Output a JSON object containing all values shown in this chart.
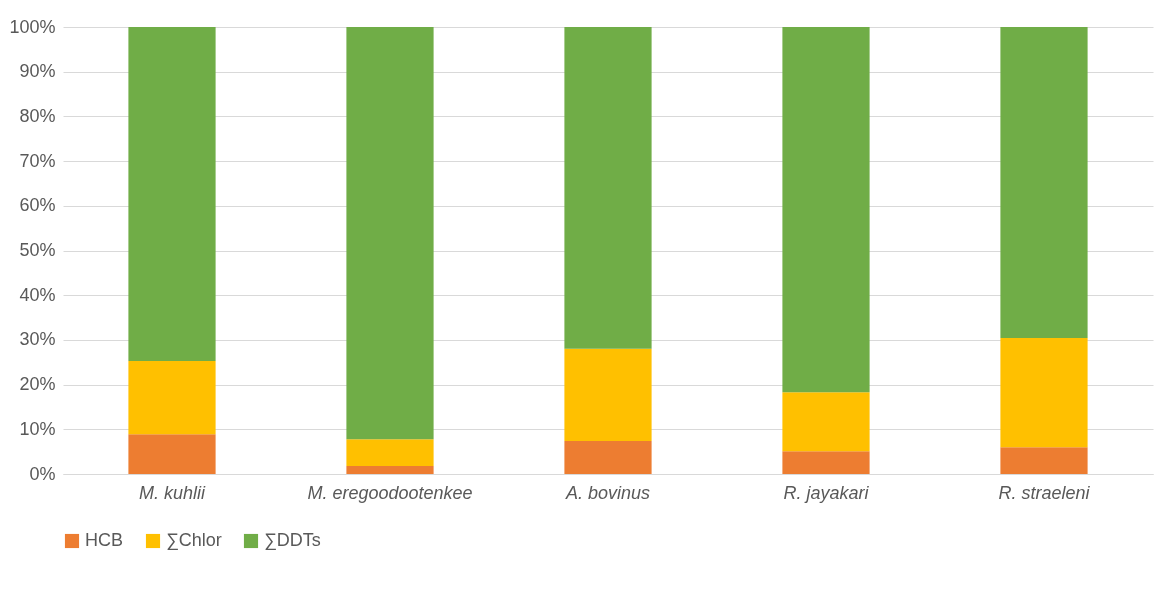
{
  "chart_data": {
    "type": "bar",
    "stacked": true,
    "categories": [
      "M. kuhlii",
      "M. eregoodootenkee",
      "A. bovinus",
      "R. jayakari",
      "R. straeleni"
    ],
    "series": [
      {
        "name": "HCB",
        "color": "#ed7d31",
        "values": [
          8.9,
          1.8,
          7.4,
          5.1,
          6.0
        ]
      },
      {
        "name": "∑Chlor",
        "color": "#ffc000",
        "values": [
          16.4,
          6.0,
          20.6,
          13.2,
          24.4
        ]
      },
      {
        "name": "∑DDTs",
        "color": "#70ad47",
        "values": [
          74.7,
          92.2,
          72.0,
          81.7,
          69.6
        ]
      }
    ],
    "ylim": [
      0,
      100
    ],
    "yticks": [
      {
        "value": 0,
        "label": "0%"
      },
      {
        "value": 10,
        "label": "10%"
      },
      {
        "value": 20,
        "label": "20%"
      },
      {
        "value": 30,
        "label": "30%"
      },
      {
        "value": 40,
        "label": "40%"
      },
      {
        "value": 50,
        "label": "50%"
      },
      {
        "value": 60,
        "label": "60%"
      },
      {
        "value": 70,
        "label": "70%"
      },
      {
        "value": 80,
        "label": "80%"
      },
      {
        "value": 90,
        "label": "90%"
      },
      {
        "value": 100,
        "label": "100%"
      }
    ],
    "grid": "y",
    "legend": "bottom"
  }
}
